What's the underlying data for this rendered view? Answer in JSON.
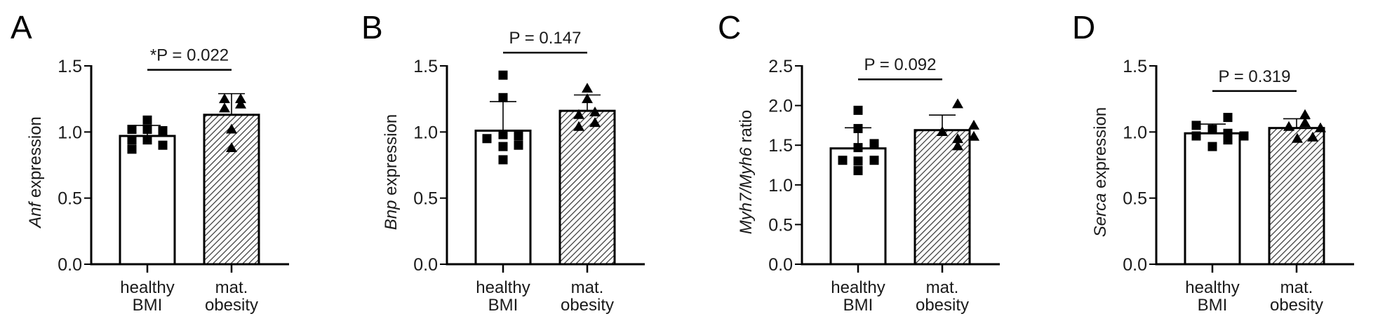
{
  "chart_data": [
    {
      "panel": "A",
      "type": "bar",
      "ylabel_italic": "Anf",
      "ylabel_rest": " expression",
      "yticks": [
        "0.0",
        "0.5",
        "1.0",
        "1.5"
      ],
      "ylim": [
        0,
        1.5
      ],
      "categories": [
        [
          "healthy",
          "BMI"
        ],
        [
          "mat.",
          "obesity"
        ]
      ],
      "means": [
        0.97,
        1.13
      ],
      "sd": [
        0.08,
        0.16
      ],
      "points": [
        [
          1.02,
          0.94,
          0.87,
          1.09,
          1.02,
          0.94,
          1.01,
          0.9
        ],
        [
          1.25,
          1.18,
          1.25,
          1.21,
          1.02,
          0.88
        ]
      ],
      "pvalue_label": "*P = 0.022",
      "pvalue_level": 1.47
    },
    {
      "panel": "B",
      "type": "bar",
      "ylabel_italic": "Bnp",
      "ylabel_rest": " expression",
      "yticks": [
        "0.0",
        "0.5",
        "1.0",
        "1.5"
      ],
      "ylim": [
        0,
        1.5
      ],
      "categories": [
        [
          "healthy",
          "BMI"
        ],
        [
          "mat.",
          "obesity"
        ]
      ],
      "means": [
        1.01,
        1.16
      ],
      "sd": [
        0.22,
        0.12
      ],
      "points": [
        [
          1.43,
          1.26,
          0.98,
          0.89,
          0.79,
          0.95,
          0.97,
          0.9
        ],
        [
          1.33,
          1.25,
          1.13,
          1.04,
          1.15,
          1.07
        ]
      ],
      "pvalue_label": "P = 0.147",
      "pvalue_level": 1.6
    },
    {
      "panel": "C",
      "type": "bar",
      "ylabel_italic": "Myh7/Myh6",
      "ylabel_rest": " ratio",
      "yticks": [
        "0.0",
        "0.5",
        "1.0",
        "1.5",
        "2.0",
        "2.5"
      ],
      "ylim": [
        0,
        2.5
      ],
      "categories": [
        [
          "healthy",
          "BMI"
        ],
        [
          "mat.",
          "obesity"
        ]
      ],
      "means": [
        1.46,
        1.69
      ],
      "sd": [
        0.26,
        0.19
      ],
      "points": [
        [
          1.94,
          1.71,
          1.47,
          1.3,
          1.18,
          1.31,
          1.52,
          1.31
        ],
        [
          2.02,
          1.67,
          1.58,
          1.49,
          1.75,
          1.61
        ]
      ],
      "pvalue_label": "P = 0.092",
      "pvalue_level": 2.33
    },
    {
      "panel": "D",
      "type": "bar",
      "ylabel_italic": "Serca",
      "ylabel_rest": " expression",
      "yticks": [
        "0.0",
        "0.5",
        "1.0",
        "1.5"
      ],
      "ylim": [
        0,
        1.5
      ],
      "categories": [
        [
          "healthy",
          "BMI"
        ],
        [
          "mat.",
          "obesity"
        ]
      ],
      "means": [
        0.99,
        1.03
      ],
      "sd": [
        0.07,
        0.07
      ],
      "points": [
        [
          1.05,
          0.97,
          1.02,
          0.89,
          1.11,
          0.99,
          0.94,
          0.97
        ],
        [
          1.13,
          1.07,
          1.04,
          0.95,
          1.03,
          0.96
        ]
      ],
      "pvalue_label": "P = 0.319",
      "pvalue_level": 1.31
    }
  ],
  "styles": {
    "ink": "#000000",
    "bar1_fill": "#ffffff",
    "bar2_pattern": "diagonal-hatch"
  }
}
